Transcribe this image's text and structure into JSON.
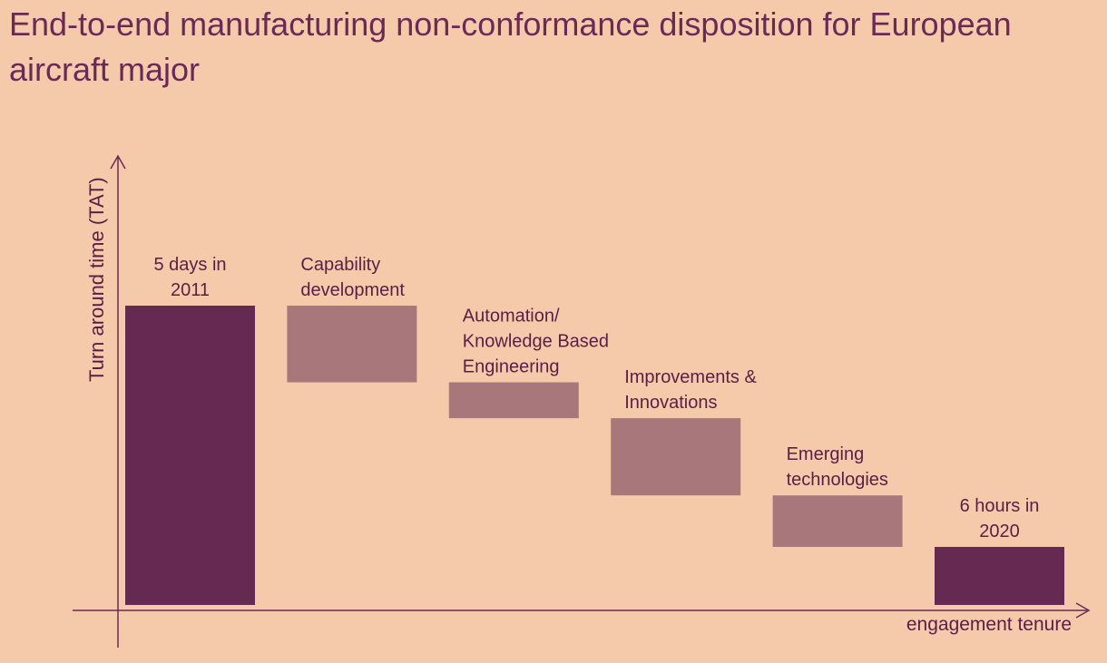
{
  "title": "End-to-end manufacturing non-conformance disposition for European aircraft major",
  "colors": {
    "background": "#f5caab",
    "title": "#6b2a55",
    "total_bar": "#662a52",
    "step_bar": "#a8777c",
    "axis": "#6b2a55",
    "label": "#5a1e45"
  },
  "chart_data": {
    "type": "bar",
    "subtype": "waterfall",
    "xlabel": "engagement tenure",
    "ylabel": "Turn around time (TAT)",
    "ylim": [
      0,
      100
    ],
    "axis_ticks": false,
    "grid": false,
    "legend": "none",
    "bars": [
      {
        "label_lines": [
          "5 days in",
          "2011"
        ],
        "kind": "total",
        "start": 0,
        "end": 100,
        "label_align": "center"
      },
      {
        "label_lines": [
          "Capability",
          "development"
        ],
        "kind": "step",
        "start": 100,
        "end": 74.4,
        "label_align": "left"
      },
      {
        "label_lines": [
          "Automation/",
          "Knowledge Based",
          "Engineering"
        ],
        "kind": "step",
        "start": 74.4,
        "end": 62.4,
        "label_align": "left"
      },
      {
        "label_lines": [
          "Improvements &",
          "Innovations"
        ],
        "kind": "step",
        "start": 62.4,
        "end": 36.6,
        "label_align": "left"
      },
      {
        "label_lines": [
          "Emerging",
          "technologies"
        ],
        "kind": "step",
        "start": 36.6,
        "end": 19.4,
        "label_align": "left"
      },
      {
        "label_lines": [
          "6 hours  in",
          "2020"
        ],
        "kind": "total",
        "start": 0,
        "end": 19.4,
        "label_align": "center"
      }
    ]
  }
}
